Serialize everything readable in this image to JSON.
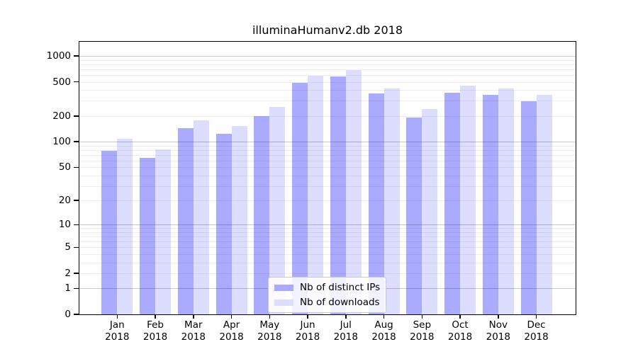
{
  "chart_data": {
    "type": "bar",
    "title": "illuminaHumanv2.db 2018",
    "scale_note": "pseudo-log y axis: vertical position proportional to log10(1+value), 0 at baseline",
    "categories": [
      "Jan",
      "Feb",
      "Mar",
      "Apr",
      "May",
      "Jun",
      "Jul",
      "Aug",
      "Sep",
      "Oct",
      "Nov",
      "Dec"
    ],
    "year_label": "2018",
    "series": [
      {
        "name": "Nb of distinct IPs",
        "color": "#aaaaff",
        "values": [
          78,
          65,
          144,
          123,
          199,
          487,
          578,
          368,
          191,
          376,
          351,
          296
        ]
      },
      {
        "name": "Nb of downloads",
        "color": "#ddddff",
        "values": [
          108,
          82,
          178,
          154,
          257,
          585,
          685,
          418,
          240,
          454,
          421,
          353
        ]
      }
    ],
    "yticks": [
      1000,
      500,
      200,
      100,
      50,
      20,
      10,
      5,
      2,
      1,
      0
    ],
    "ylim": [
      0,
      1460
    ],
    "grid": {
      "major_at": [
        1,
        10,
        100,
        1000
      ],
      "minor": "2-9 multiples per decade"
    },
    "legend_position": "inside-bottom-center",
    "colors": {
      "axis": "#000000",
      "major_grid": "rgba(0,0,0,0.22)",
      "minor_grid": "rgba(0,0,0,0.065)"
    }
  }
}
